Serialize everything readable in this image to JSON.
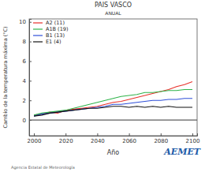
{
  "chart_data": {
    "type": "line",
    "title": "PAIS VASCO",
    "subtitle": "ANUAL",
    "x_label": "Año",
    "y_label": "Cambio de la temperatura máxima (°C)",
    "logo": "AEMET",
    "credit": "Agencia Estatal de Meteorología",
    "x": [
      2000,
      2005,
      2010,
      2015,
      2020,
      2025,
      2030,
      2035,
      2040,
      2045,
      2050,
      2055,
      2060,
      2065,
      2070,
      2075,
      2080,
      2085,
      2090,
      2095,
      2100
    ],
    "series": [
      {
        "name": "A2 (11)",
        "color": "#e8302a",
        "values": [
          0.5,
          0.6,
          0.8,
          0.7,
          1.0,
          1.1,
          1.2,
          1.3,
          1.4,
          1.6,
          1.8,
          1.9,
          2.1,
          2.3,
          2.5,
          2.7,
          2.9,
          3.1,
          3.4,
          3.6,
          3.9
        ]
      },
      {
        "name": "A1B (19)",
        "color": "#2fb34a",
        "values": [
          0.5,
          0.7,
          0.8,
          0.9,
          1.0,
          1.2,
          1.4,
          1.6,
          1.8,
          2.0,
          2.2,
          2.4,
          2.5,
          2.6,
          2.8,
          2.8,
          2.9,
          3.0,
          3.0,
          3.1,
          3.1
        ]
      },
      {
        "name": "B1 (13)",
        "color": "#2f4fd8",
        "values": [
          0.4,
          0.6,
          0.7,
          0.8,
          0.9,
          1.0,
          1.1,
          1.2,
          1.3,
          1.4,
          1.6,
          1.6,
          1.7,
          1.8,
          1.9,
          2.0,
          2.0,
          2.1,
          2.1,
          2.2,
          2.2
        ]
      },
      {
        "name": "E1 (4)",
        "color": "#111111",
        "values": [
          0.4,
          0.5,
          0.7,
          0.8,
          0.9,
          1.0,
          1.1,
          1.2,
          1.2,
          1.3,
          1.4,
          1.4,
          1.3,
          1.4,
          1.3,
          1.4,
          1.3,
          1.4,
          1.3,
          1.3,
          1.3
        ]
      }
    ],
    "xlim": [
      1997,
      2103
    ],
    "ylim": [
      -1.6,
      10.3
    ],
    "xticks": [
      2000,
      2020,
      2040,
      2060,
      2080,
      2100
    ],
    "yticks": [
      0,
      2,
      4,
      6,
      8,
      10
    ],
    "legend": "upper left",
    "grid": false
  }
}
